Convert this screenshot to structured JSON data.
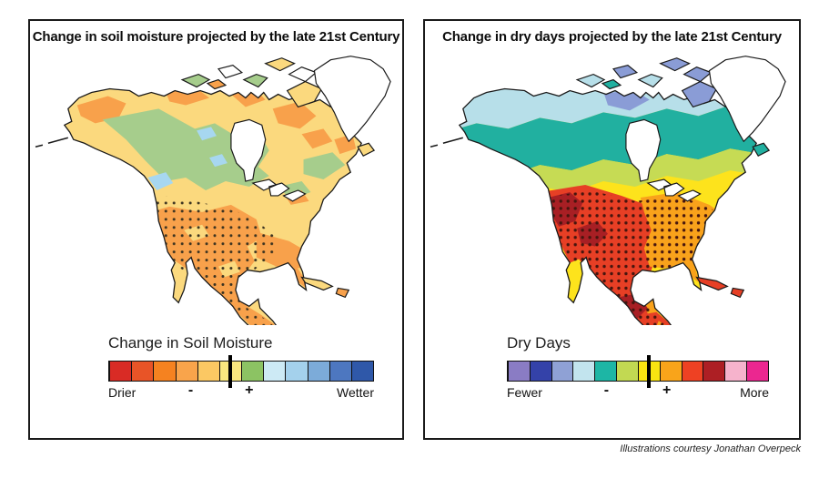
{
  "left_panel": {
    "title": "Change in soil moisture projected by the late 21st Century",
    "legend": {
      "heading": "Change in Soil Moisture",
      "labels": {
        "left": "Drier",
        "minus": "-",
        "plus": "+",
        "right": "Wetter"
      },
      "colors": [
        "#d92b25",
        "#e85427",
        "#f58220",
        "#f9a44b",
        "#fbc863",
        "#f9e77f",
        "#8cc363",
        "#cdeaf5",
        "#a4d1ec",
        "#7cabd9",
        "#4d77c0",
        "#2f58a9"
      ],
      "divider_pos": 45.8
    },
    "map": {
      "base": "#fbd97e",
      "orange": "#f8a14b",
      "green": "#a6cd8c",
      "blue": "#a7d7f0",
      "water": "#ffffff",
      "outline": "#1a1a1a",
      "dots": "#3a3220"
    }
  },
  "right_panel": {
    "title": "Change in dry days projected by the late 21st Century",
    "legend": {
      "heading": "Dry Days",
      "labels": {
        "left": "Fewer",
        "minus": "-",
        "plus": "+",
        "right": "More"
      },
      "colors": [
        "#8a7cc4",
        "#3442a9",
        "#8fa1d5",
        "#c2e4ee",
        "#1db6a5",
        "#c2d952",
        "#f9e411",
        "#f9a41a",
        "#ee4123",
        "#ad1f24",
        "#f6b3cc",
        "#eb2790"
      ],
      "divider_pos": 54.2
    },
    "map": {
      "palecyan": "#b7dfe9",
      "periwinkle": "#8a9cd6",
      "teal": "#21b0a0",
      "yellowgreen": "#c6db54",
      "yellow": "#fde31c",
      "orange": "#f9a21b",
      "red": "#e73f25",
      "darkred": "#a81f24",
      "water": "#ffffff",
      "outline": "#1a1a1a",
      "dots": "#46150e"
    }
  },
  "attribution": "Illustrations courtesy Jonathan Overpeck"
}
